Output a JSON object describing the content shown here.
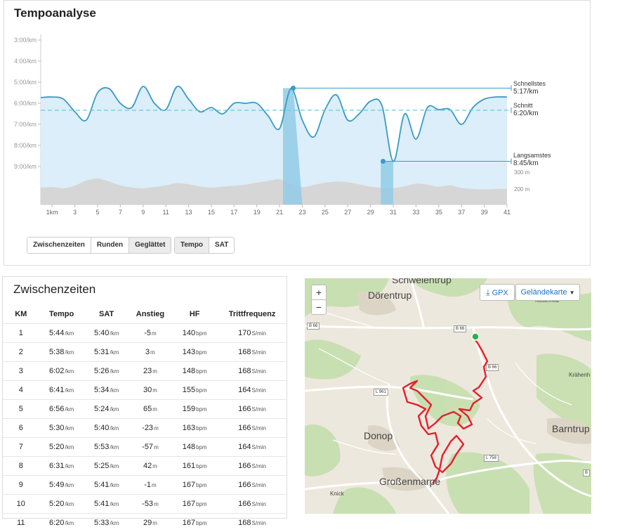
{
  "tempo": {
    "title": "Tempoanalyse",
    "y_labels": [
      "3:00/km",
      "4:00/km",
      "5:00/km",
      "6:00/km",
      "7:00/km",
      "8:00/km",
      "9:00/km"
    ],
    "elev_labels": [
      "300 m",
      "200 m"
    ],
    "x_labels": [
      "1km",
      "3",
      "5",
      "7",
      "9",
      "11",
      "13",
      "15",
      "17",
      "19",
      "21",
      "23",
      "25",
      "27",
      "29",
      "31",
      "33",
      "35",
      "37",
      "39",
      "41"
    ],
    "annotations": {
      "fastest_label": "Schnellstes",
      "fastest_value": "5:17/km",
      "avg_label": "Schnitt",
      "avg_value": "6:20/km",
      "slowest_label": "Langsamstes",
      "slowest_value": "8:45/km"
    },
    "buttons_split": [
      "Zwischenzeiten",
      "Runden",
      "Geglättet"
    ],
    "buttons_metric": [
      "Tempo",
      "SAT"
    ],
    "colors": {
      "line": "#3a9bc4",
      "fill": "#dbeef9",
      "elev": "#d6d6d6",
      "avg": "#6fc6da",
      "highlight": "#92cbe8"
    }
  },
  "chart_data": {
    "type": "area",
    "title": "Tempoanalyse",
    "xlabel": "",
    "ylabel": "",
    "x_unit": "km",
    "y_unit": "min/km (inverted axis)",
    "ylim": [
      "3:00",
      "10:00"
    ],
    "series": [
      {
        "x": [
          0,
          1,
          2,
          3,
          4,
          5,
          6,
          7,
          8,
          9,
          10,
          11,
          12,
          13,
          14,
          15,
          16,
          17,
          18,
          19,
          20,
          21,
          22,
          23,
          24,
          25,
          26,
          27,
          28,
          29,
          30,
          31,
          32,
          33,
          34,
          35,
          36,
          37,
          38,
          39,
          40,
          41
        ],
        "pace_min_per_km": [
          5.73,
          5.7,
          5.8,
          6.4,
          6.8,
          5.5,
          5.3,
          6.0,
          6.2,
          5.2,
          6.0,
          6.3,
          5.2,
          5.8,
          6.4,
          6.2,
          6.5,
          6.0,
          6.0,
          6.0,
          6.6,
          7.2,
          5.3,
          6.8,
          7.6,
          6.3,
          5.6,
          6.8,
          6.5,
          5.9,
          6.1,
          8.75,
          6.5,
          7.7,
          6.2,
          6.3,
          6.3,
          7.0,
          6.2,
          5.8,
          5.7,
          5.7
        ]
      }
    ],
    "average": "6:20/km",
    "fastest": "5:17/km",
    "slowest": "8:45/km",
    "elevation_scale": [
      "200 m",
      "300 m"
    ]
  },
  "splits": {
    "title": "Zwischenzeiten",
    "headers": [
      "KM",
      "Tempo",
      "SAT",
      "Anstieg",
      "HF",
      "Trittfrequenz"
    ],
    "rows": [
      {
        "km": "1",
        "tempo": "5:44",
        "tempo_u": "/km",
        "sat": "5:40",
        "sat_u": "/km",
        "anstieg": "-5",
        "anstieg_u": "m",
        "hf": "140",
        "hf_u": "bpm",
        "cad": "170",
        "cad_u": "S/min"
      },
      {
        "km": "2",
        "tempo": "5:38",
        "tempo_u": "/km",
        "sat": "5:31",
        "sat_u": "/km",
        "anstieg": "3",
        "anstieg_u": "m",
        "hf": "143",
        "hf_u": "bpm",
        "cad": "168",
        "cad_u": "S/min"
      },
      {
        "km": "3",
        "tempo": "6:02",
        "tempo_u": "/km",
        "sat": "5:26",
        "sat_u": "/km",
        "anstieg": "23",
        "anstieg_u": "m",
        "hf": "148",
        "hf_u": "bpm",
        "cad": "168",
        "cad_u": "S/min"
      },
      {
        "km": "4",
        "tempo": "6:41",
        "tempo_u": "/km",
        "sat": "5:34",
        "sat_u": "/km",
        "anstieg": "30",
        "anstieg_u": "m",
        "hf": "155",
        "hf_u": "bpm",
        "cad": "164",
        "cad_u": "S/min"
      },
      {
        "km": "5",
        "tempo": "6:56",
        "tempo_u": "/km",
        "sat": "5:24",
        "sat_u": "/km",
        "anstieg": "65",
        "anstieg_u": "m",
        "hf": "159",
        "hf_u": "bpm",
        "cad": "166",
        "cad_u": "S/min"
      },
      {
        "km": "6",
        "tempo": "5:30",
        "tempo_u": "/km",
        "sat": "5:40",
        "sat_u": "/km",
        "anstieg": "-23",
        "anstieg_u": "m",
        "hf": "163",
        "hf_u": "bpm",
        "cad": "166",
        "cad_u": "S/min"
      },
      {
        "km": "7",
        "tempo": "5:20",
        "tempo_u": "/km",
        "sat": "5:53",
        "sat_u": "/km",
        "anstieg": "-57",
        "anstieg_u": "m",
        "hf": "148",
        "hf_u": "bpm",
        "cad": "164",
        "cad_u": "S/min"
      },
      {
        "km": "8",
        "tempo": "6:31",
        "tempo_u": "/km",
        "sat": "5:25",
        "sat_u": "/km",
        "anstieg": "42",
        "anstieg_u": "m",
        "hf": "161",
        "hf_u": "bpm",
        "cad": "166",
        "cad_u": "S/min"
      },
      {
        "km": "9",
        "tempo": "5:49",
        "tempo_u": "/km",
        "sat": "5:41",
        "sat_u": "/km",
        "anstieg": "-1",
        "anstieg_u": "m",
        "hf": "167",
        "hf_u": "bpm",
        "cad": "166",
        "cad_u": "S/min"
      },
      {
        "km": "10",
        "tempo": "5:20",
        "tempo_u": "/km",
        "sat": "5:41",
        "sat_u": "/km",
        "anstieg": "-53",
        "anstieg_u": "m",
        "hf": "167",
        "hf_u": "bpm",
        "cad": "166",
        "cad_u": "S/min"
      },
      {
        "km": "11",
        "tempo": "6:20",
        "tempo_u": "/km",
        "sat": "5:33",
        "sat_u": "/km",
        "anstieg": "29",
        "anstieg_u": "m",
        "hf": "167",
        "hf_u": "bpm",
        "cad": "168",
        "cad_u": "S/min"
      }
    ]
  },
  "map": {
    "zoom_in": "+",
    "zoom_out": "−",
    "gpx_label": "GPX",
    "layer_label": "Geländekarte",
    "places": [
      "Schwelentrup",
      "Dörentrup",
      "Donop",
      "Barntrup",
      "Großenmarpe",
      "Knick",
      "Krähenh",
      "Klosterholz"
    ],
    "roads": [
      "B 66",
      "B 66",
      "B 66",
      "L 961",
      "L 758",
      "B"
    ],
    "colors": {
      "route": "#e5202a",
      "start": "#2bb34a",
      "forest": "#c4dfae"
    }
  }
}
